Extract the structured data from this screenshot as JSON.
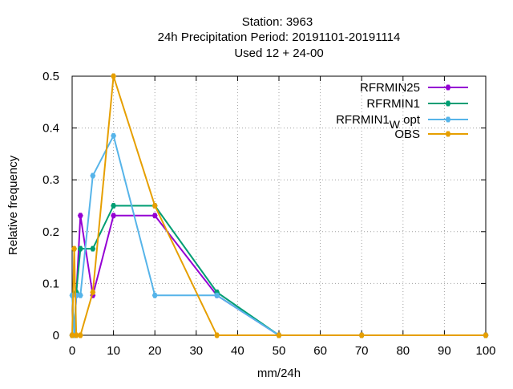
{
  "chart_data": {
    "type": "line",
    "title": [
      "Station:     3963",
      "24h Precipitation  Period: 20191101-20191114",
      "Used  12 + 24-00"
    ],
    "xlabel": "mm/24h",
    "ylabel": "Relative frequency",
    "xlim": [
      0,
      100
    ],
    "ylim": [
      0,
      0.5
    ],
    "xticks": [
      0,
      10,
      20,
      30,
      40,
      50,
      60,
      70,
      80,
      90,
      100
    ],
    "yticks": [
      0,
      0.1,
      0.2,
      0.3,
      0.4,
      0.5
    ],
    "xtick_labels": [
      "0",
      "10",
      "20",
      "30",
      "40",
      "50",
      "60",
      "70",
      "80",
      "90",
      "100"
    ],
    "ytick_labels": [
      "0",
      "0.1",
      "0.2",
      "0.3",
      "0.4",
      "0.5"
    ],
    "grid": true,
    "legend_position": "top-right",
    "series": [
      {
        "name": "RFRMIN25",
        "color": "#9400d3",
        "x": [
          0,
          0.5,
          1,
          2,
          5,
          10,
          20,
          35,
          50,
          70,
          100
        ],
        "y": [
          0,
          0,
          0.077,
          0.231,
          0.077,
          0.231,
          0.231,
          0.077,
          0,
          0,
          0
        ]
      },
      {
        "name": "RFRMIN1",
        "color": "#009e73",
        "x": [
          0,
          0.5,
          1,
          2,
          5,
          10,
          20,
          35,
          50,
          70,
          100
        ],
        "y": [
          0,
          0,
          0.083,
          0.167,
          0.167,
          0.25,
          0.25,
          0.083,
          0,
          0,
          0
        ]
      },
      {
        "name": "RFRMIN1_W opt",
        "legend_main": "RFRMIN1",
        "legend_sub": "W",
        "legend_rest": "opt",
        "color": "#56b4e9",
        "x": [
          0,
          0.5,
          1,
          2,
          5,
          10,
          20,
          35,
          50,
          70,
          100
        ],
        "y": [
          0.077,
          0,
          0.077,
          0.077,
          0.308,
          0.385,
          0.077,
          0.077,
          0,
          0,
          0
        ]
      },
      {
        "name": "OBS",
        "color": "#e69f00",
        "x": [
          0,
          0.5,
          1,
          2,
          5,
          10,
          20,
          35,
          50,
          70,
          100
        ],
        "y": [
          0,
          0.167,
          0,
          0,
          0.083,
          0.5,
          0.25,
          0,
          0,
          0,
          0
        ]
      }
    ]
  }
}
